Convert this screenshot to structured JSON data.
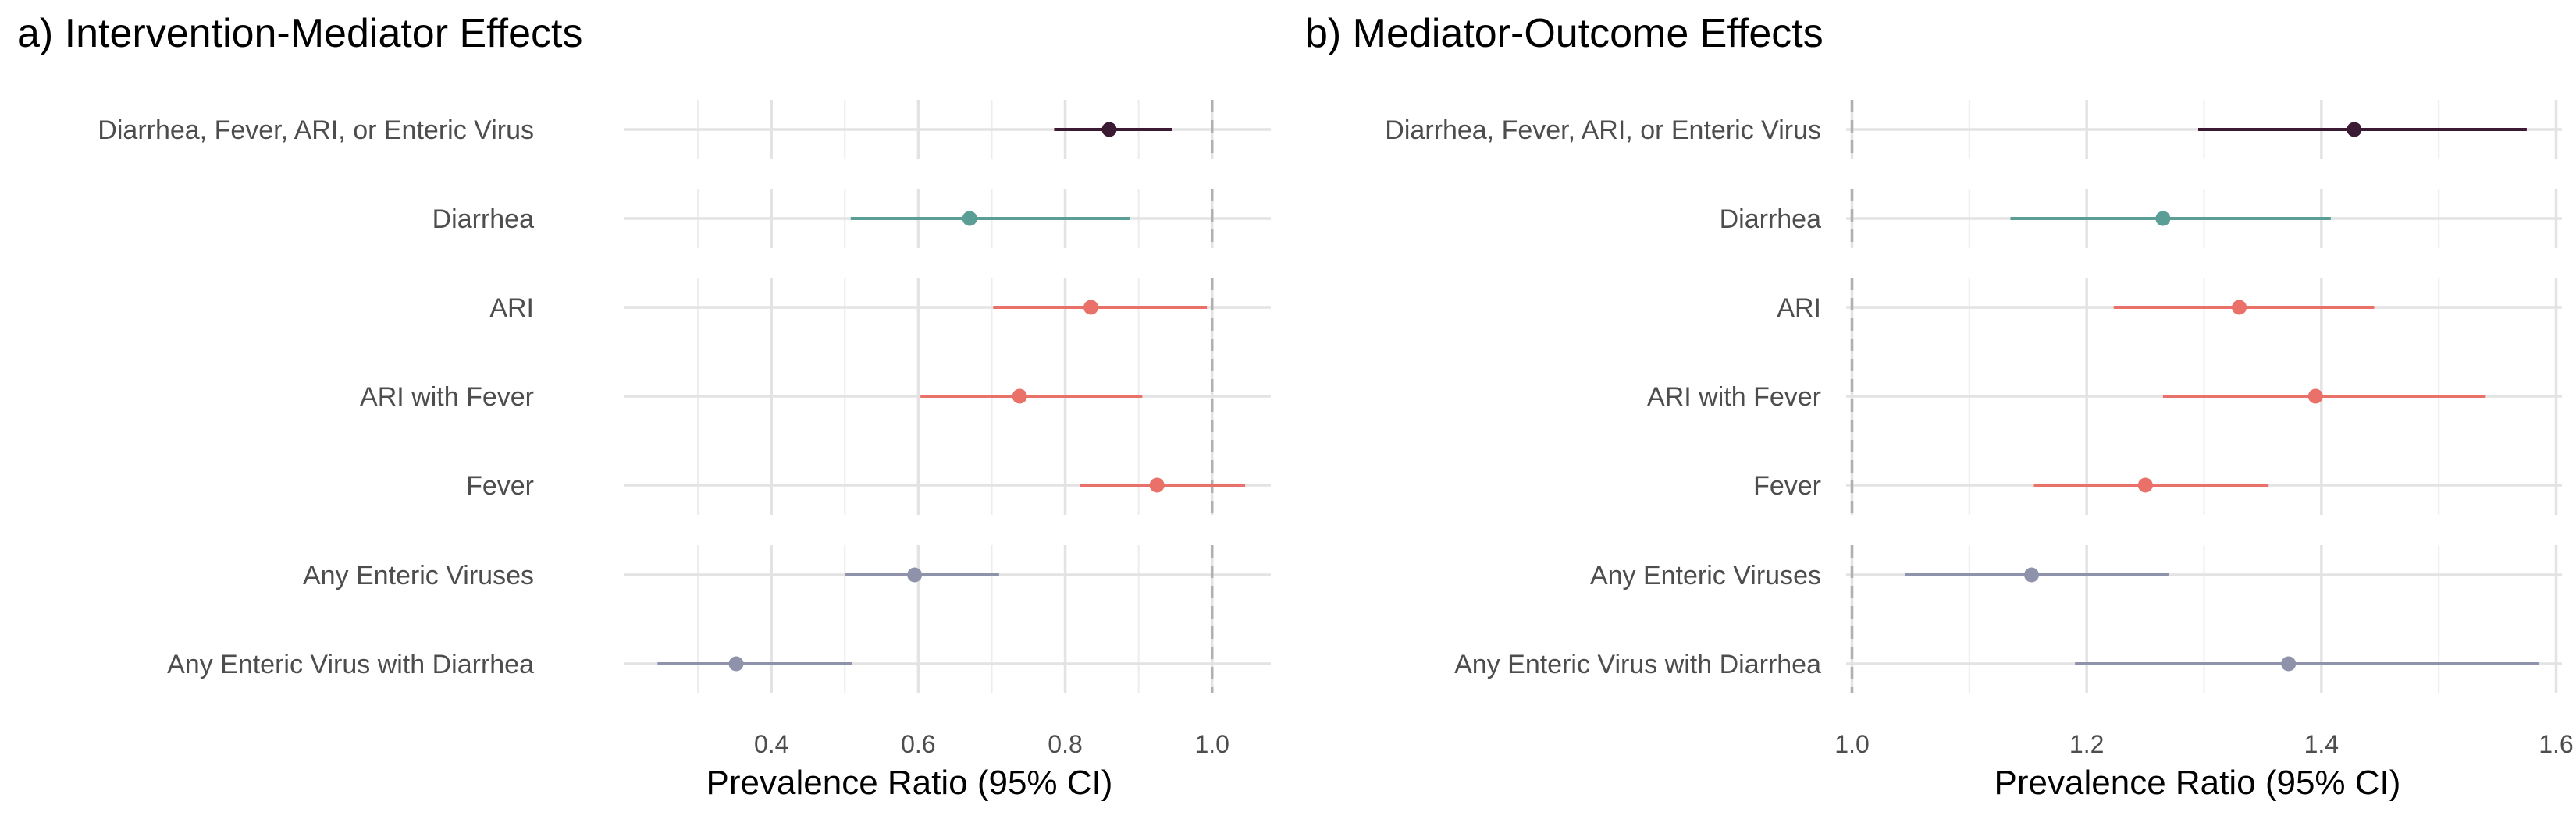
{
  "chart_data": [
    {
      "type": "forest",
      "title": "a) Intervention-Mediator Effects",
      "xlabel": "Prevalence Ratio (95% CI)",
      "xlim": [
        0.2,
        1.08
      ],
      "xticks": [
        0.4,
        0.6,
        0.8,
        1.0
      ],
      "xtick_labels": [
        "0.4",
        "0.6",
        "0.8",
        "1.0"
      ],
      "reference_line": 1.0,
      "grid": true,
      "groups": [
        {
          "color": "#3b1a33",
          "rows": [
            {
              "label": "Diarrhea, Fever, ARI, or Enteric Virus",
              "estimate": 0.86,
              "lower": 0.785,
              "upper": 0.945
            }
          ]
        },
        {
          "color": "#5a9e96",
          "rows": [
            {
              "label": "Diarrhea",
              "estimate": 0.67,
              "lower": 0.508,
              "upper": 0.888
            }
          ]
        },
        {
          "color": "#e9716a",
          "rows": [
            {
              "label": "ARI",
              "estimate": 0.835,
              "lower": 0.702,
              "upper": 0.993
            },
            {
              "label": "ARI with Fever",
              "estimate": 0.738,
              "lower": 0.603,
              "upper": 0.905
            },
            {
              "label": "Fever",
              "estimate": 0.925,
              "lower": 0.82,
              "upper": 1.045
            }
          ]
        },
        {
          "color": "#8e93ab",
          "rows": [
            {
              "label": "Any Enteric Viruses",
              "estimate": 0.595,
              "lower": 0.5,
              "upper": 0.71
            },
            {
              "label": "Any Enteric Virus with Diarrhea",
              "estimate": 0.352,
              "lower": 0.245,
              "upper": 0.51
            }
          ]
        }
      ]
    },
    {
      "type": "forest",
      "title": "b) Mediator-Outcome Effects",
      "xlabel": "Prevalence Ratio (95% CI)",
      "xlim": [
        0.995,
        1.605
      ],
      "xticks": [
        1.0,
        1.2,
        1.4,
        1.6
      ],
      "xtick_labels": [
        "1.0",
        "1.2",
        "1.4",
        "1.6"
      ],
      "reference_line": 1.0,
      "grid": true,
      "groups": [
        {
          "color": "#3b1a33",
          "rows": [
            {
              "label": "Diarrhea, Fever, ARI, or Enteric Virus",
              "estimate": 1.428,
              "lower": 1.295,
              "upper": 1.575
            }
          ]
        },
        {
          "color": "#5a9e96",
          "rows": [
            {
              "label": "Diarrhea",
              "estimate": 1.265,
              "lower": 1.135,
              "upper": 1.408
            }
          ]
        },
        {
          "color": "#e9716a",
          "rows": [
            {
              "label": "ARI",
              "estimate": 1.33,
              "lower": 1.223,
              "upper": 1.445
            },
            {
              "label": "ARI with Fever",
              "estimate": 1.395,
              "lower": 1.265,
              "upper": 1.54
            },
            {
              "label": "Fever",
              "estimate": 1.25,
              "lower": 1.155,
              "upper": 1.355
            }
          ]
        },
        {
          "color": "#8e93ab",
          "rows": [
            {
              "label": "Any Enteric Viruses",
              "estimate": 1.153,
              "lower": 1.045,
              "upper": 1.27
            },
            {
              "label": "Any Enteric Virus with Diarrhea",
              "estimate": 1.372,
              "lower": 1.19,
              "upper": 1.585
            }
          ]
        }
      ]
    }
  ]
}
